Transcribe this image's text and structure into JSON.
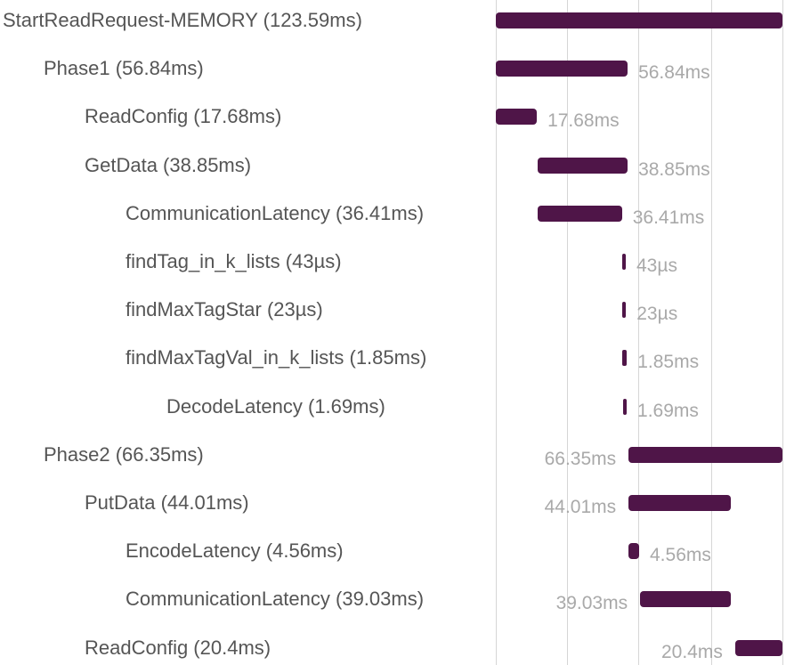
{
  "trace": {
    "total_ms": 123.59,
    "bar_color": "#4f1548",
    "spans": [
      {
        "label": "StartReadRequest-MEMORY (123.59ms)",
        "duration": "",
        "depth": 0,
        "start_ms": 0,
        "duration_ms": 123.59,
        "dur_label_side": "none"
      },
      {
        "label": "Phase1 (56.84ms)",
        "duration": "56.84ms",
        "depth": 1,
        "start_ms": 0,
        "duration_ms": 56.84,
        "dur_label_side": "right"
      },
      {
        "label": "ReadConfig (17.68ms)",
        "duration": "17.68ms",
        "depth": 2,
        "start_ms": 0,
        "duration_ms": 17.68,
        "dur_label_side": "right"
      },
      {
        "label": "GetData (38.85ms)",
        "duration": "38.85ms",
        "depth": 2,
        "start_ms": 17.99,
        "duration_ms": 38.85,
        "dur_label_side": "right"
      },
      {
        "label": "CommunicationLatency (36.41ms)",
        "duration": "36.41ms",
        "depth": 3,
        "start_ms": 17.99,
        "duration_ms": 36.41,
        "dur_label_side": "right"
      },
      {
        "label": "findTag_in_k_lists (43µs)",
        "duration": "43µs",
        "depth": 3,
        "start_ms": 54.5,
        "duration_ms": 0.043,
        "dur_label_side": "right"
      },
      {
        "label": "findMaxTagStar (23µs)",
        "duration": "23µs",
        "depth": 3,
        "start_ms": 54.6,
        "duration_ms": 0.023,
        "dur_label_side": "right"
      },
      {
        "label": "findMaxTagVal_in_k_lists (1.85ms)",
        "duration": "1.85ms",
        "depth": 3,
        "start_ms": 54.65,
        "duration_ms": 1.85,
        "dur_label_side": "right"
      },
      {
        "label": "DecodeLatency (1.69ms)",
        "duration": "1.69ms",
        "depth": 4,
        "start_ms": 54.75,
        "duration_ms": 1.69,
        "dur_label_side": "right"
      },
      {
        "label": "Phase2 (66.35ms)",
        "duration": "66.35ms",
        "depth": 1,
        "start_ms": 57.24,
        "duration_ms": 66.35,
        "dur_label_side": "left"
      },
      {
        "label": "PutData (44.01ms)",
        "duration": "44.01ms",
        "depth": 2,
        "start_ms": 57.24,
        "duration_ms": 44.01,
        "dur_label_side": "left"
      },
      {
        "label": "EncodeLatency (4.56ms)",
        "duration": "4.56ms",
        "depth": 3,
        "start_ms": 57.24,
        "duration_ms": 4.56,
        "dur_label_side": "right"
      },
      {
        "label": "CommunicationLatency (39.03ms)",
        "duration": "39.03ms",
        "depth": 3,
        "start_ms": 62.22,
        "duration_ms": 39.03,
        "dur_label_side": "left"
      },
      {
        "label": "ReadConfig (20.4ms)",
        "duration": "20.4ms",
        "depth": 2,
        "start_ms": 103.19,
        "duration_ms": 20.4,
        "dur_label_side": "left"
      }
    ]
  }
}
